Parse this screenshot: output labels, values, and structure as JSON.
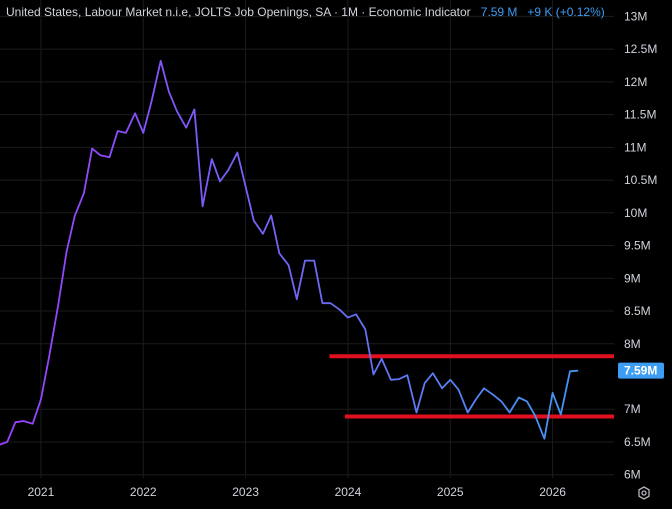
{
  "header": {
    "title": "United States, Labour Market n.i.e, JOLTS Job Openings, SA · 1M · Economic Indicator",
    "last_value": "7.59 M",
    "change": "+9 K (+0.12%)"
  },
  "colors": {
    "background": "#000000",
    "grid": "#1c1c1c",
    "line_start": "#9b40ff",
    "line_end": "#3d9df3",
    "support_lines": "#e0101e",
    "price_badge": "#3d9df3",
    "axis_text": "#d1d4dc"
  },
  "chart_data": {
    "type": "line",
    "title": "United States, Labour Market n.i.e, JOLTS Job Openings, SA · 1M · Economic Indicator",
    "x_unit": "decimal year",
    "y_unit": "millions",
    "xlim": [
      2020.6,
      2026.6
    ],
    "ylim": [
      5.95,
      13.25
    ],
    "grid": true,
    "x_ticks": [
      {
        "value": 2021.0,
        "label": "2021"
      },
      {
        "value": 2022.0,
        "label": "2022"
      },
      {
        "value": 2023.0,
        "label": "2023"
      },
      {
        "value": 2024.0,
        "label": "2024"
      },
      {
        "value": 2025.0,
        "label": "2025"
      },
      {
        "value": 2026.0,
        "label": "2026"
      }
    ],
    "y_ticks": [
      {
        "value": 6.0,
        "label": "6M"
      },
      {
        "value": 6.5,
        "label": "6.5M"
      },
      {
        "value": 7.0,
        "label": "7M"
      },
      {
        "value": 8.0,
        "label": "8M"
      },
      {
        "value": 8.5,
        "label": "8.5M"
      },
      {
        "value": 9.0,
        "label": "9M"
      },
      {
        "value": 9.5,
        "label": "9.5M"
      },
      {
        "value": 10.0,
        "label": "10M"
      },
      {
        "value": 10.5,
        "label": "10.5M"
      },
      {
        "value": 11.0,
        "label": "11M"
      },
      {
        "value": 11.5,
        "label": "11.5M"
      },
      {
        "value": 12.0,
        "label": "12M"
      },
      {
        "value": 12.5,
        "label": "12.5M"
      },
      {
        "value": 13.0,
        "label": "13M"
      }
    ],
    "last_value_label": "7.59M",
    "last_value": 7.59,
    "series": [
      {
        "x": [
          2020.58,
          2020.67,
          2020.75,
          2020.83,
          2020.92,
          2021.0,
          2021.08,
          2021.17,
          2021.25,
          2021.33,
          2021.42,
          2021.5,
          2021.58,
          2021.67,
          2021.75,
          2021.83,
          2021.92,
          2022.0,
          2022.08,
          2022.17,
          2022.25,
          2022.33,
          2022.42,
          2022.5,
          2022.58,
          2022.67,
          2022.75,
          2022.83,
          2022.92,
          2023.0,
          2023.08,
          2023.17,
          2023.25,
          2023.33,
          2023.42,
          2023.5,
          2023.58,
          2023.67,
          2023.75,
          2023.83,
          2023.92,
          2024.0,
          2024.08,
          2024.17,
          2024.25,
          2024.33,
          2024.42,
          2024.5,
          2024.58,
          2024.67,
          2024.75,
          2024.83,
          2024.92,
          2025.0,
          2025.08,
          2025.17,
          2025.25,
          2025.33,
          2025.42,
          2025.5,
          2025.58,
          2025.67,
          2025.75,
          2025.83,
          2025.92,
          2026.0,
          2026.08,
          2026.17,
          2026.25
        ],
        "values": [
          6.45,
          6.5,
          6.8,
          6.82,
          6.78,
          7.15,
          7.8,
          8.6,
          9.4,
          9.95,
          10.3,
          10.98,
          10.88,
          10.85,
          11.25,
          11.22,
          11.52,
          11.22,
          11.7,
          12.32,
          11.85,
          11.55,
          11.3,
          11.58,
          10.1,
          10.82,
          10.48,
          10.65,
          10.92,
          10.4,
          9.88,
          9.68,
          9.96,
          9.38,
          9.2,
          8.68,
          9.27,
          9.27,
          8.62,
          8.62,
          8.52,
          8.4,
          8.45,
          8.22,
          7.53,
          7.77,
          7.45,
          7.46,
          7.52,
          6.95,
          7.4,
          7.55,
          7.32,
          7.45,
          7.3,
          6.95,
          7.15,
          7.32,
          7.22,
          7.12,
          6.95,
          7.18,
          7.12,
          6.9,
          6.55,
          7.25,
          6.92,
          7.58,
          7.59
        ]
      }
    ],
    "annotations": [
      {
        "type": "horizontal-line",
        "y": 7.81,
        "x_start": 2023.82,
        "x_end": 2026.6
      },
      {
        "type": "horizontal-line",
        "y": 6.89,
        "x_start": 2023.97,
        "x_end": 2026.6
      }
    ]
  }
}
